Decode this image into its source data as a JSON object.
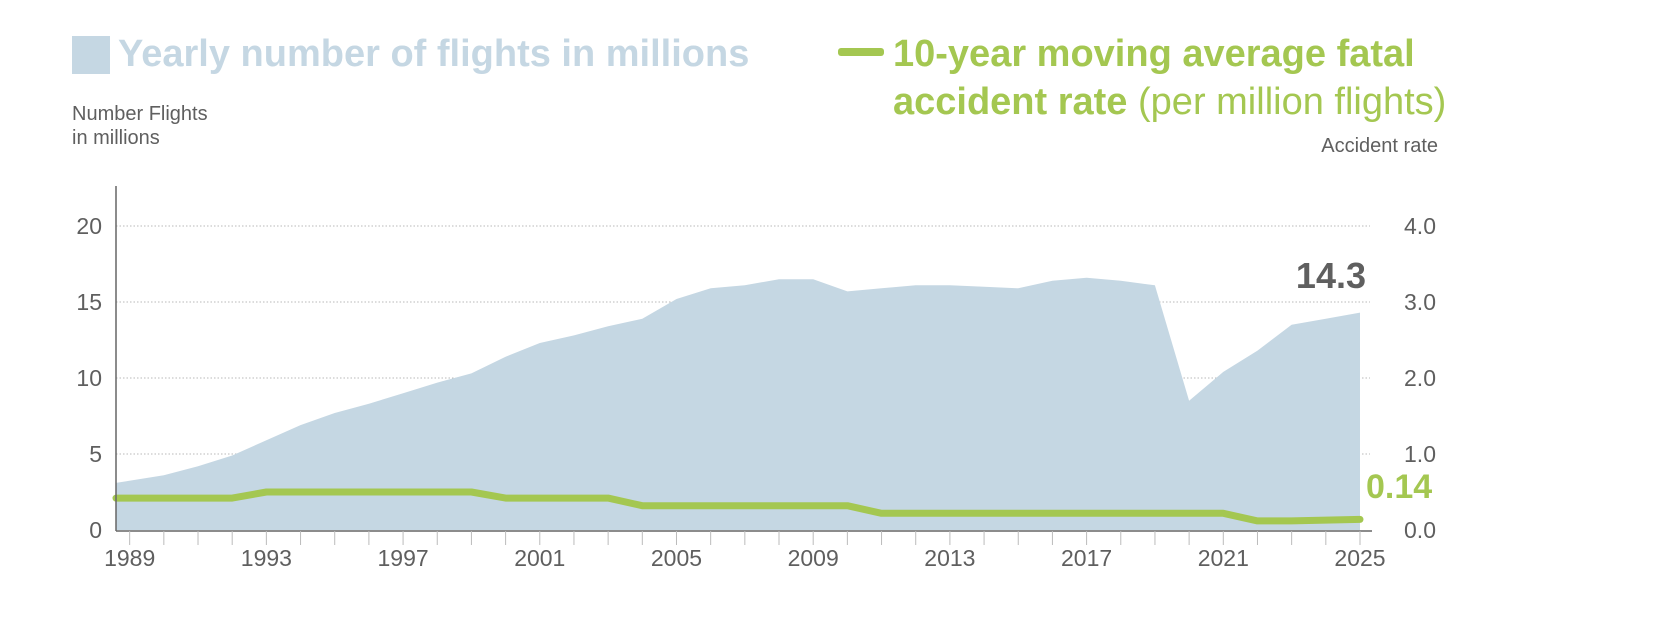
{
  "colors": {
    "area": "#c5d7e3",
    "line": "#a4c751",
    "text": "#5f5f5f",
    "grid": "#b8b8b8"
  },
  "chart_data": {
    "type": "area+line",
    "legend": {
      "area_label": "Yearly number of flights in millions",
      "line_label_bold_1": "10-year moving average fatal",
      "line_label_bold_2": "accident rate",
      "line_label_light": "(per million flights)"
    },
    "ylabel_left_1": "Number Flights",
    "ylabel_left_2": "in millions",
    "ylabel_right": "Accident rate",
    "ylim_left": [
      0,
      20
    ],
    "ylim_right": [
      0,
      4
    ],
    "xlim": [
      1988.6,
      2025
    ],
    "left_ticks": [
      "0",
      "5",
      "10",
      "15",
      "20"
    ],
    "right_ticks": [
      "0.0",
      "1.0",
      "2.0",
      "3.0",
      "4.0"
    ],
    "x_tick_labels": [
      "1989",
      "1993",
      "1997",
      "2001",
      "2005",
      "2009",
      "2013",
      "2017",
      "2021",
      "2025"
    ],
    "x": [
      1988.6,
      1990,
      1991,
      1992,
      1993,
      1994,
      1995,
      1996,
      1997,
      1998,
      1999,
      2000,
      2001,
      2002,
      2003,
      2004,
      2005,
      2006,
      2007,
      2008,
      2009,
      2010,
      2011,
      2012,
      2013,
      2014,
      2015,
      2016,
      2017,
      2018,
      2019,
      2020,
      2021,
      2022,
      2023,
      2024,
      2025
    ],
    "series": [
      {
        "name": "Yearly number of flights in millions",
        "type": "area",
        "values": [
          3.1,
          3.6,
          4.2,
          4.9,
          5.9,
          6.9,
          7.7,
          8.3,
          9.0,
          9.7,
          10.3,
          11.4,
          12.3,
          12.8,
          13.4,
          13.9,
          15.2,
          15.9,
          16.1,
          16.5,
          16.5,
          15.7,
          15.9,
          16.1,
          16.1,
          16.0,
          15.9,
          16.4,
          16.6,
          16.4,
          16.1,
          8.5,
          10.4,
          11.8,
          13.5,
          13.9,
          14.3
        ]
      },
      {
        "name": "10-year moving average fatal accident rate",
        "type": "line",
        "values": [
          0.42,
          0.42,
          0.42,
          0.42,
          0.5,
          0.5,
          0.5,
          0.5,
          0.5,
          0.5,
          0.5,
          0.42,
          0.42,
          0.42,
          0.42,
          0.32,
          0.32,
          0.32,
          0.32,
          0.32,
          0.32,
          0.32,
          0.22,
          0.22,
          0.22,
          0.22,
          0.22,
          0.22,
          0.22,
          0.22,
          0.22,
          0.22,
          0.22,
          0.12,
          0.12,
          0.13,
          0.14
        ]
      }
    ],
    "annotations": {
      "flights_last": "14.3",
      "rate_last": "0.14"
    }
  }
}
